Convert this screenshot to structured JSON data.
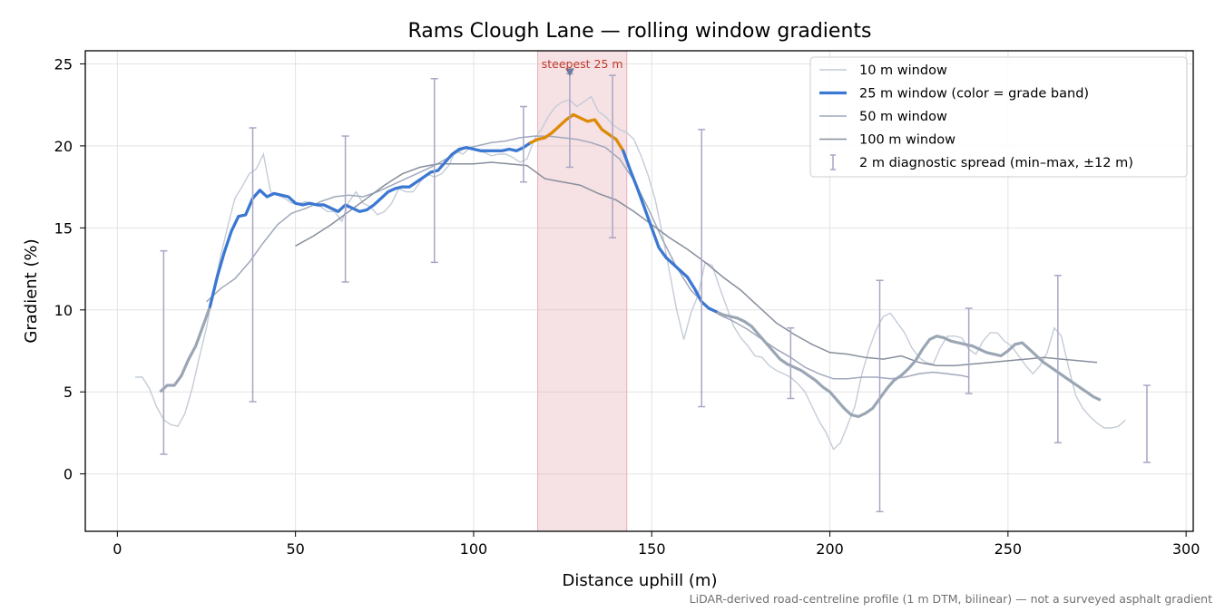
{
  "chart_data": {
    "type": "line",
    "title": "Rams Clough Lane — rolling window gradients",
    "xlabel": "Distance uphill (m)",
    "ylabel": "Gradient (%)",
    "xlim": [
      -9,
      302
    ],
    "ylim": [
      -3.5,
      25.8
    ],
    "xticks": [
      0,
      50,
      100,
      150,
      200,
      250,
      300
    ],
    "yticks": [
      0,
      5,
      10,
      15,
      20,
      25
    ],
    "grid": true,
    "legend_position": "top-right",
    "footnote": "LiDAR-derived road-centreline profile (1 m DTM, bilinear) — not a surveyed asphalt gradient",
    "steepest_band": {
      "x_start": 118,
      "x_end": 143,
      "label": "steepest 25 m",
      "marker_x": 127,
      "marker_y": 24.4
    },
    "colors": {
      "w10": "#c4ccd6",
      "w25_primary": "#3a78d4",
      "w25_steep": "#e08a00",
      "w25_gentle": "#9aa6b4",
      "w50": "#a0a8bc",
      "w100": "#868e9c",
      "errorbar": "#a8a6c4",
      "band": "#e8b0b8",
      "annotation": "#c0392b"
    },
    "series": [
      {
        "key": "w10",
        "name": "10 m window",
        "x": [
          5,
          7,
          9,
          11,
          13,
          15,
          17,
          19,
          21,
          23,
          25,
          27,
          29,
          31,
          33,
          35,
          37,
          39,
          41,
          43,
          45,
          47,
          49,
          51,
          53,
          55,
          57,
          59,
          61,
          63,
          65,
          67,
          69,
          71,
          73,
          75,
          77,
          79,
          81,
          83,
          85,
          87,
          89,
          91,
          93,
          95,
          97,
          99,
          101,
          103,
          105,
          107,
          109,
          111,
          113,
          115,
          117,
          119,
          121,
          123,
          125,
          127,
          129,
          131,
          133,
          135,
          137,
          139,
          141,
          143,
          145,
          147,
          149,
          151,
          153,
          155,
          157,
          159,
          161,
          163,
          165,
          167,
          169,
          171,
          173,
          175,
          177,
          179,
          181,
          183,
          185,
          187,
          189,
          191,
          193,
          195,
          197,
          199,
          201,
          203,
          205,
          207,
          209,
          211,
          213,
          215,
          217,
          219,
          221,
          223,
          225,
          227,
          229,
          231,
          233,
          235,
          237,
          239,
          241,
          243,
          245,
          247,
          249,
          251,
          253,
          255,
          257,
          259,
          261,
          263,
          265,
          267,
          269,
          271,
          273,
          275,
          277,
          279,
          281,
          283
        ],
        "y": [
          5.9,
          5.9,
          5.2,
          4.1,
          3.3,
          3.0,
          2.9,
          3.7,
          5.2,
          7.1,
          8.9,
          11.2,
          13.3,
          15.1,
          16.8,
          17.5,
          18.3,
          18.6,
          19.5,
          17.2,
          17.0,
          16.8,
          16.5,
          16.5,
          16.6,
          16.4,
          16.3,
          16.0,
          16.0,
          15.4,
          16.6,
          17.2,
          16.5,
          16.3,
          15.8,
          16.0,
          16.5,
          17.4,
          17.2,
          17.2,
          17.8,
          18.3,
          18.1,
          18.3,
          18.8,
          19.7,
          19.5,
          19.9,
          19.7,
          19.6,
          19.4,
          19.5,
          19.5,
          19.3,
          19.0,
          19.2,
          20.4,
          21.0,
          21.8,
          22.4,
          22.7,
          22.8,
          22.4,
          22.7,
          23.0,
          22.1,
          21.8,
          21.3,
          21.0,
          20.8,
          20.4,
          19.4,
          18.2,
          16.7,
          14.6,
          12.3,
          10.0,
          8.2,
          9.8,
          10.9,
          12.9,
          12.7,
          11.4,
          10.2,
          9.0,
          8.3,
          7.8,
          7.2,
          7.1,
          6.6,
          6.3,
          6.1,
          5.9,
          5.5,
          5.0,
          4.1,
          3.2,
          2.5,
          1.5,
          1.9,
          3.0,
          4.1,
          6.1,
          7.6,
          8.8,
          9.6,
          9.8,
          9.2,
          8.6,
          7.7,
          7.1,
          6.8,
          6.7,
          7.7,
          8.4,
          8.4,
          8.3,
          7.6,
          7.3,
          8.1,
          8.6,
          8.6,
          8.1,
          7.8,
          7.2,
          6.6,
          6.1,
          6.6,
          7.4,
          8.9,
          8.4,
          6.5,
          4.8,
          4.0,
          3.5,
          3.1,
          2.8,
          2.8,
          2.9,
          3.3
        ]
      },
      {
        "key": "w25",
        "name": "25 m window (color = grade band)",
        "x": [
          12,
          14,
          16,
          18,
          20,
          22,
          24,
          26,
          28,
          30,
          32,
          34,
          36,
          38,
          40,
          42,
          44,
          46,
          48,
          50,
          52,
          54,
          56,
          58,
          60,
          62,
          64,
          66,
          68,
          70,
          72,
          74,
          76,
          78,
          80,
          82,
          84,
          86,
          88,
          90,
          92,
          94,
          96,
          98,
          100,
          102,
          104,
          106,
          108,
          110,
          112,
          114,
          116,
          118,
          120,
          122,
          124,
          126,
          128,
          130,
          132,
          134,
          136,
          138,
          140,
          142,
          144,
          146,
          148,
          150,
          152,
          154,
          156,
          158,
          160,
          162,
          164,
          166,
          168,
          170,
          172,
          174,
          176,
          178,
          180,
          182,
          184,
          186,
          188,
          190,
          192,
          194,
          196,
          198,
          200,
          202,
          204,
          206,
          208,
          210,
          212,
          214,
          216,
          218,
          220,
          222,
          224,
          226,
          228,
          230,
          232,
          234,
          236,
          238,
          240,
          242,
          244,
          246,
          248,
          250,
          252,
          254,
          256,
          258,
          260,
          262,
          264,
          266,
          268,
          270,
          272,
          274,
          276
        ],
        "y": [
          5.0,
          5.4,
          5.4,
          6.0,
          7.0,
          7.8,
          9.0,
          10.2,
          12.0,
          13.5,
          14.8,
          15.7,
          15.8,
          16.8,
          17.3,
          16.9,
          17.1,
          17.0,
          16.9,
          16.5,
          16.4,
          16.5,
          16.4,
          16.4,
          16.2,
          16.0,
          16.4,
          16.2,
          16.0,
          16.1,
          16.4,
          16.8,
          17.2,
          17.4,
          17.5,
          17.5,
          17.8,
          18.1,
          18.4,
          18.5,
          19.0,
          19.5,
          19.8,
          19.9,
          19.8,
          19.7,
          19.7,
          19.7,
          19.7,
          19.8,
          19.7,
          19.9,
          20.2,
          20.4,
          20.5,
          20.8,
          21.2,
          21.6,
          21.9,
          21.7,
          21.5,
          21.6,
          21.0,
          20.7,
          20.4,
          19.7,
          18.5,
          17.4,
          16.2,
          15.0,
          13.8,
          13.2,
          12.8,
          12.4,
          12.0,
          11.3,
          10.5,
          10.1,
          9.9,
          9.7,
          9.6,
          9.5,
          9.3,
          9.0,
          8.5,
          8.0,
          7.5,
          7.0,
          6.7,
          6.5,
          6.3,
          6.0,
          5.7,
          5.3,
          5.0,
          4.5,
          4.0,
          3.6,
          3.5,
          3.7,
          4.0,
          4.6,
          5.2,
          5.7,
          6.0,
          6.4,
          6.9,
          7.6,
          8.2,
          8.4,
          8.3,
          8.1,
          8.0,
          7.9,
          7.8,
          7.6,
          7.4,
          7.3,
          7.2,
          7.5,
          7.9,
          8.0,
          7.6,
          7.2,
          6.8,
          6.5,
          6.2,
          5.9,
          5.6,
          5.3,
          5.0,
          4.7,
          4.5
        ]
      },
      {
        "key": "w50",
        "name": "50 m window",
        "x": [
          25,
          29,
          33,
          37,
          41,
          45,
          49,
          53,
          57,
          61,
          65,
          69,
          73,
          77,
          81,
          85,
          89,
          93,
          97,
          101,
          105,
          109,
          113,
          117,
          121,
          125,
          129,
          133,
          137,
          141,
          145,
          149,
          153,
          157,
          161,
          165,
          169,
          173,
          177,
          181,
          185,
          189,
          193,
          197,
          201,
          205,
          209,
          213,
          217,
          221,
          225,
          229,
          233,
          237,
          239
        ],
        "y": [
          10.5,
          11.3,
          11.9,
          12.9,
          14.1,
          15.2,
          15.9,
          16.2,
          16.6,
          16.9,
          17.0,
          16.9,
          17.2,
          17.6,
          18.0,
          18.4,
          18.8,
          19.3,
          19.8,
          20.0,
          20.2,
          20.3,
          20.5,
          20.6,
          20.6,
          20.5,
          20.4,
          20.2,
          19.9,
          19.2,
          17.9,
          16.2,
          14.3,
          12.6,
          11.2,
          10.3,
          9.7,
          9.3,
          8.8,
          8.2,
          7.6,
          7.1,
          6.5,
          6.1,
          5.8,
          5.8,
          5.9,
          5.9,
          5.8,
          5.9,
          6.1,
          6.2,
          6.1,
          6.0,
          5.9
        ]
      },
      {
        "key": "w100",
        "name": "100 m window",
        "x": [
          50,
          55,
          60,
          65,
          70,
          75,
          80,
          85,
          90,
          95,
          100,
          105,
          110,
          115,
          120,
          125,
          130,
          135,
          140,
          145,
          150,
          155,
          160,
          165,
          170,
          175,
          180,
          185,
          190,
          195,
          200,
          205,
          210,
          215,
          220,
          225,
          230,
          235,
          240,
          245,
          250,
          255,
          260,
          265,
          270,
          275
        ],
        "y": [
          13.9,
          14.5,
          15.2,
          16.0,
          16.8,
          17.6,
          18.3,
          18.7,
          18.9,
          18.9,
          18.9,
          19.0,
          18.9,
          18.8,
          18.0,
          17.8,
          17.6,
          17.1,
          16.7,
          16.0,
          15.2,
          14.4,
          13.7,
          12.9,
          12.0,
          11.2,
          10.2,
          9.2,
          8.5,
          7.9,
          7.4,
          7.3,
          7.1,
          7.0,
          7.2,
          6.8,
          6.6,
          6.6,
          6.7,
          6.8,
          6.9,
          7.0,
          7.1,
          7.0,
          6.9,
          6.8
        ]
      },
      {
        "key": "diag",
        "name": "2 m diagnostic spread (min–max, ±12 m)",
        "x": [
          13,
          38,
          64,
          89,
          114,
          127,
          139,
          164,
          189,
          214,
          239,
          264,
          289
        ],
        "ymin": [
          1.2,
          4.4,
          11.7,
          12.9,
          17.8,
          18.7,
          14.4,
          4.1,
          4.6,
          -2.3,
          4.9,
          1.9,
          0.7
        ],
        "ymax": [
          13.6,
          21.1,
          20.6,
          24.1,
          22.4,
          24.4,
          24.3,
          21.0,
          8.9,
          11.8,
          10.1,
          12.1,
          5.4
        ]
      }
    ],
    "w25_bands": [
      {
        "x_from": 26,
        "x_to": 116,
        "color_key": "w25_primary"
      },
      {
        "x_from": 116,
        "x_to": 142,
        "color_key": "w25_steep"
      },
      {
        "x_from": 142,
        "x_to": 168,
        "color_key": "w25_primary"
      }
    ]
  }
}
